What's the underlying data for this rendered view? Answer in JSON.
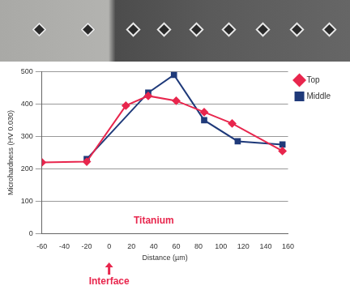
{
  "chart_data": {
    "type": "line",
    "x_label": "Distance (µm)",
    "y_label": "Microhardness (HV 0.030)",
    "series": [
      {
        "name": "Top",
        "color": "#e8264d",
        "marker": "diamond",
        "x": [
          -60,
          -20,
          15,
          35,
          60,
          85,
          110,
          155
        ],
        "values": [
          220,
          222,
          395,
          425,
          410,
          375,
          340,
          255
        ]
      },
      {
        "name": "Middle",
        "color": "#1f3a7a",
        "marker": "square",
        "x": [
          -20,
          35,
          58,
          85,
          115,
          155
        ],
        "values": [
          230,
          435,
          490,
          350,
          285,
          275
        ]
      }
    ],
    "xlim": [
      -60,
      160
    ],
    "xticks": [
      -60,
      -40,
      -20,
      0,
      20,
      40,
      60,
      80,
      100,
      120,
      140,
      160
    ],
    "ylim": [
      0,
      500
    ],
    "yticks": [
      0,
      100,
      200,
      300,
      400,
      500
    ],
    "grid": "y",
    "legend": "right",
    "annotations": [
      {
        "text": "Titanium",
        "x": 40,
        "y": 40
      },
      {
        "text": "Interface",
        "x": 0
      }
    ]
  }
}
